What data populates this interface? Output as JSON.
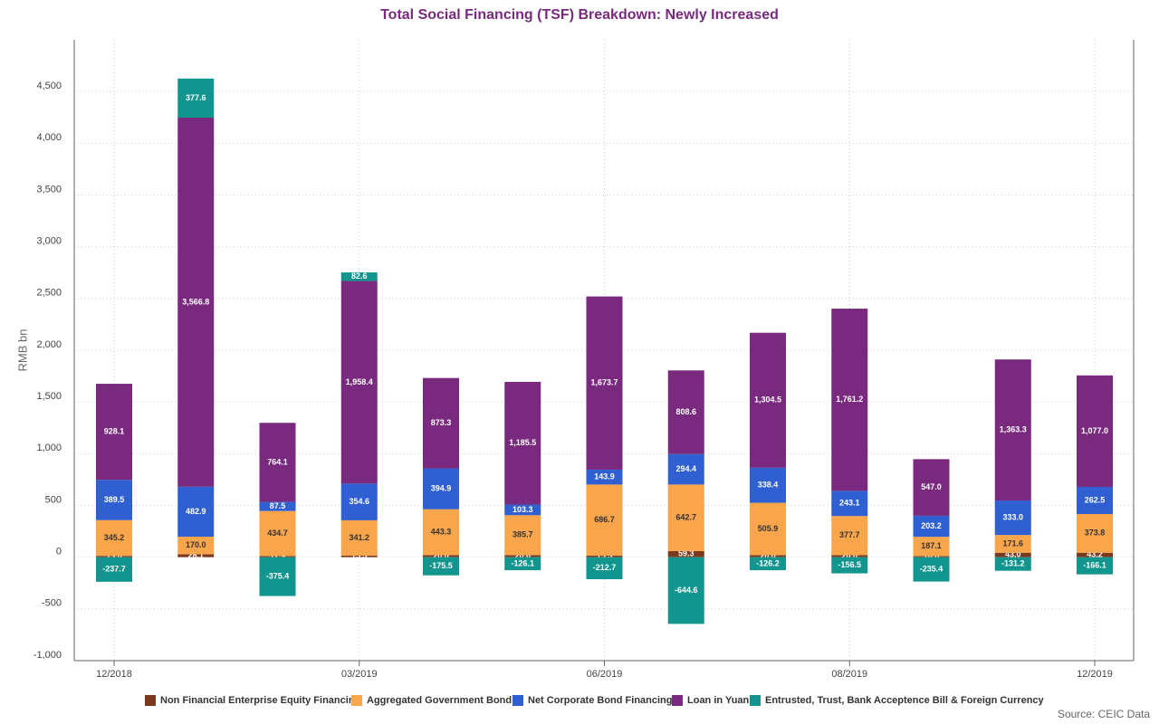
{
  "chart_data": {
    "type": "stacked_bar",
    "title": "Total Social Financing (TSF) Breakdown: Newly Increased",
    "y_label": "RMB bn",
    "source": "Source: CEIC Data",
    "categories": [
      "12/2018",
      null,
      null,
      "03/2019",
      null,
      null,
      "06/2019",
      null,
      null,
      "08/2019",
      null,
      null,
      "12/2019"
    ],
    "ylim": [
      -1000,
      5000
    ],
    "yticks": [
      {
        "value": -1000,
        "label": "-1,000"
      },
      -500,
      0,
      500,
      {
        "value": 1000,
        "label": "1,000"
      },
      {
        "value": 1500,
        "label": "1,500"
      },
      {
        "value": 2000,
        "label": "2,000"
      },
      {
        "value": 2500,
        "label": "2,500"
      },
      {
        "value": 3000,
        "label": "3,000"
      },
      {
        "value": 3500,
        "label": "3,500"
      },
      {
        "value": 4000,
        "label": "4,000"
      },
      {
        "value": 4500,
        "label": "4,500"
      }
    ],
    "grid": true,
    "legend": "bottom",
    "series": [
      {
        "name": "Non Financial Enterprise Equity Financing",
        "color": "#7b3a1e",
        "values": [
          13.0,
          28.1,
          11.9,
          15.3,
          20,
          20,
          15.3,
          59.3,
          20,
          20,
          10,
          43,
          43.2
        ],
        "value_labels": [
          "13.0",
          "28.1",
          "11.9",
          "15.3",
          "20.0",
          "20.0",
          "15.3",
          "59.3",
          "20.0",
          "20.0",
          "10.0",
          "43.0",
          "43.2"
        ]
      },
      {
        "name": "Aggregated Government Bond",
        "color": "#f9a54b",
        "values": [
          345.2,
          170.0,
          434.7,
          341.2,
          443.3,
          385.7,
          686.7,
          642.7,
          505.9,
          377.7,
          187.1,
          171.6,
          373.8
        ],
        "value_labels": [
          "345.2",
          "170.0",
          "434.7",
          "341.2",
          "443.3",
          "385.7",
          "686.7",
          "642.7",
          "505.9",
          "377.7",
          "187.1",
          "171.6",
          "373.8"
        ]
      },
      {
        "name": "Net Corporate Bond Financing",
        "color": "#2f5fd0",
        "values": [
          389.5,
          482.9,
          87.5,
          354.6,
          394.9,
          103.3,
          143.9,
          294.4,
          338.4,
          243.1,
          203.2,
          333.0,
          262.5
        ],
        "value_labels": [
          "389.5",
          "482.9",
          "87.5",
          "354.6",
          "394.9",
          "103.3",
          "143.9",
          "294.4",
          "338.4",
          "243.1",
          "203.2",
          "333.0",
          "262.5"
        ]
      },
      {
        "name": "Loan in Yuan",
        "color": "#7a2a7e",
        "values": [
          928.1,
          3566.8,
          764.1,
          1958.4,
          873.3,
          1185.5,
          1673.7,
          808.6,
          1304.5,
          1761.2,
          547.0,
          1363.3,
          1077.0
        ],
        "value_labels": [
          "928.1",
          "3,566.8",
          "764.1",
          "1,958.4",
          "873.3",
          "1,185.5",
          "1,673.7",
          "808.6",
          "1,304.5",
          "1,761.2",
          "547.0",
          "1,363.3",
          "1,077.0"
        ]
      },
      {
        "name": "Entrusted, Trust, Bank Acceptence Bill & Foreign Currency",
        "color": "#12958f",
        "values": [
          -237.7,
          377.6,
          -375.4,
          82.6,
          -175.5,
          -126.1,
          -212.7,
          -644.6,
          -126.2,
          -156.5,
          -235.4,
          -131.2,
          -166.1
        ],
        "value_labels": [
          "-237.7",
          "377.6",
          "-375.4",
          "82.6",
          "-175.5",
          "-126.1",
          "-212.7",
          "-644.6",
          "-126.2",
          "-156.5",
          "-235.4",
          "-131.2",
          "-166.1"
        ]
      }
    ]
  }
}
